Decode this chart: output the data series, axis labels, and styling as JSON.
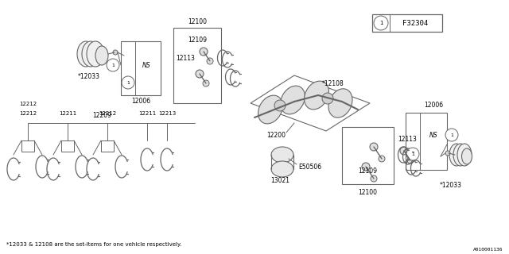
{
  "bg_color": "#ffffff",
  "line_color": "#666666",
  "text_color": "#000000",
  "footnote": "*12033 & 12108 are the set-items for one vehicle respectively.",
  "doc_number": "A010001136",
  "title_label": "F32304"
}
